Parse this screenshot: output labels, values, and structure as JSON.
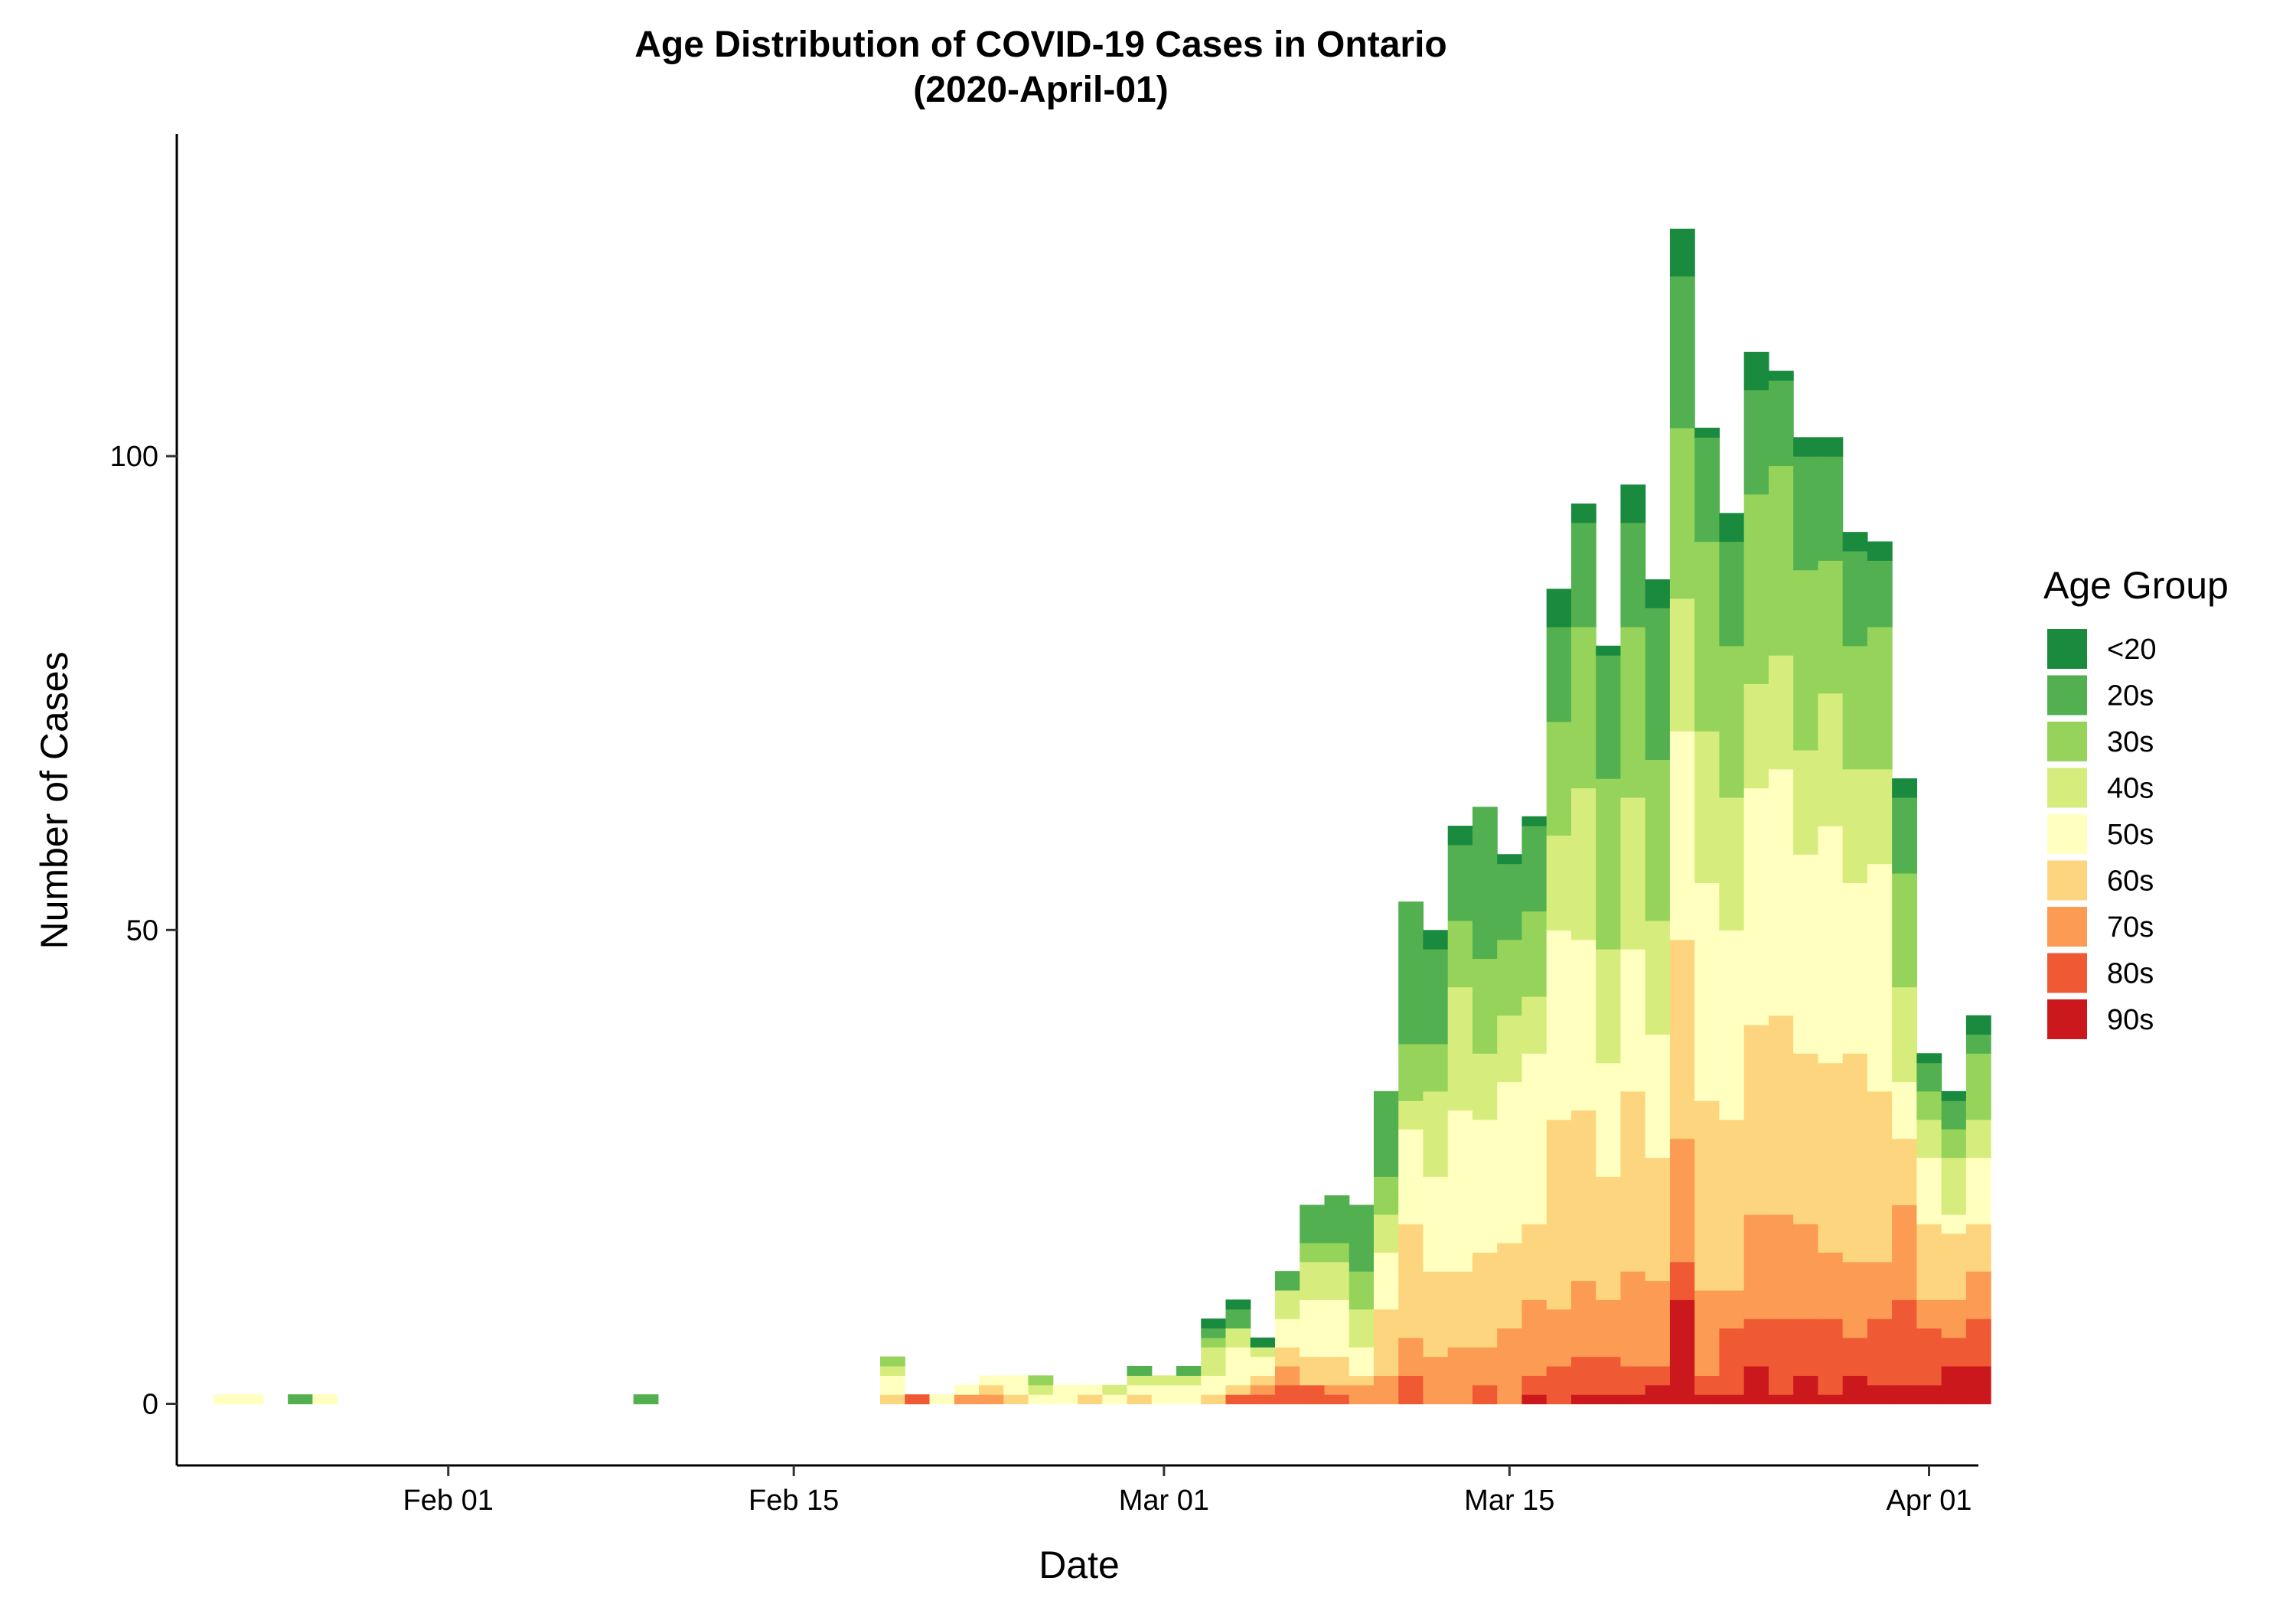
{
  "chart_data": {
    "type": "bar",
    "stacked": true,
    "title": "Age Distribution of COVID-19 Cases in Ontario",
    "subtitle": "(2020-April-01)",
    "xlabel": "Date",
    "ylabel": "Number of Cases",
    "x_start_date": "2020-01-23",
    "xlim": [
      "2020-01-21",
      "2020-04-03"
    ],
    "ylim": [
      -6.5,
      134
    ],
    "yticks": [
      0,
      50,
      100
    ],
    "xticks": [
      {
        "date": "2020-02-01",
        "label": "Feb 01"
      },
      {
        "date": "2020-02-15",
        "label": "Feb 15"
      },
      {
        "date": "2020-03-01",
        "label": "Mar 01"
      },
      {
        "date": "2020-03-15",
        "label": "Mar 15"
      },
      {
        "date": "2020-04-01",
        "label": "Apr 01"
      }
    ],
    "legend": {
      "title": "Age Group",
      "position": "right"
    },
    "series": [
      {
        "name": "90s",
        "color": "#cb181d",
        "values": [
          0,
          0,
          0,
          0,
          0,
          0,
          0,
          0,
          0,
          0,
          0,
          0,
          0,
          0,
          0,
          0,
          0,
          0,
          0,
          0,
          0,
          0,
          0,
          0,
          0,
          0,
          0,
          0,
          0,
          0,
          0,
          0,
          0,
          0,
          0,
          0,
          0,
          0,
          0,
          0,
          0,
          0,
          0,
          0,
          0,
          0,
          0,
          0,
          0,
          0,
          0,
          0,
          0,
          1,
          0,
          1,
          1,
          1,
          2,
          11,
          1,
          1,
          4,
          1,
          3,
          1,
          3,
          2,
          2,
          2,
          4,
          4
        ]
      },
      {
        "name": "80s",
        "color": "#ef5a35",
        "values": [
          0,
          0,
          0,
          0,
          0,
          0,
          0,
          0,
          0,
          0,
          0,
          0,
          0,
          0,
          0,
          0,
          0,
          0,
          0,
          0,
          0,
          0,
          0,
          0,
          0,
          0,
          0,
          0,
          1,
          0,
          0,
          0,
          0,
          0,
          0,
          0,
          0,
          0,
          0,
          0,
          0,
          1,
          1,
          2,
          2,
          1,
          0,
          0,
          3,
          0,
          0,
          2,
          0,
          2,
          4,
          4,
          4,
          3,
          2,
          4,
          2,
          7,
          5,
          8,
          6,
          8,
          4,
          7,
          9,
          6,
          3,
          5
        ]
      },
      {
        "name": "70s",
        "color": "#fc9b53",
        "values": [
          0,
          0,
          0,
          0,
          0,
          0,
          0,
          0,
          0,
          0,
          0,
          0,
          0,
          0,
          0,
          0,
          0,
          0,
          0,
          0,
          0,
          0,
          0,
          0,
          0,
          0,
          0,
          0,
          0,
          0,
          1,
          1,
          0,
          0,
          0,
          0,
          0,
          0,
          0,
          0,
          0,
          0,
          1,
          2,
          0,
          1,
          2,
          3,
          4,
          5,
          6,
          4,
          8,
          8,
          6,
          8,
          6,
          10,
          9,
          13,
          9,
          4,
          11,
          11,
          10,
          7,
          8,
          6,
          10,
          3,
          4,
          5
        ]
      },
      {
        "name": "60s",
        "color": "#fdd57f",
        "values": [
          0,
          0,
          0,
          0,
          0,
          0,
          0,
          0,
          0,
          0,
          0,
          0,
          0,
          0,
          0,
          0,
          0,
          0,
          0,
          0,
          0,
          0,
          0,
          0,
          0,
          0,
          0,
          1,
          0,
          0,
          0,
          1,
          1,
          0,
          0,
          1,
          0,
          1,
          0,
          0,
          1,
          1,
          1,
          2,
          3,
          3,
          1,
          7,
          12,
          9,
          8,
          10,
          9,
          8,
          20,
          18,
          13,
          19,
          13,
          21,
          20,
          18,
          20,
          21,
          18,
          20,
          22,
          18,
          7,
          8,
          7,
          5
        ]
      },
      {
        "name": "50s",
        "color": "#ffffc0",
        "values": [
          1,
          1,
          0,
          0,
          1,
          0,
          0,
          0,
          0,
          0,
          0,
          0,
          0,
          0,
          0,
          0,
          0,
          0,
          0,
          0,
          0,
          0,
          0,
          0,
          0,
          0,
          0,
          2,
          0,
          1,
          1,
          1,
          2,
          1,
          2,
          1,
          1,
          1,
          2,
          2,
          2,
          4,
          2,
          3,
          6,
          6,
          3,
          6,
          10,
          10,
          17,
          14,
          17,
          18,
          20,
          18,
          12,
          15,
          13,
          22,
          23,
          20,
          25,
          26,
          21,
          25,
          18,
          24,
          6,
          7,
          2,
          7
        ]
      },
      {
        "name": "40s",
        "color": "#d6ed7d",
        "values": [
          0,
          0,
          0,
          0,
          0,
          0,
          0,
          0,
          0,
          0,
          0,
          0,
          0,
          0,
          0,
          0,
          0,
          0,
          0,
          0,
          0,
          0,
          0,
          0,
          0,
          0,
          0,
          1,
          0,
          0,
          0,
          0,
          0,
          1,
          0,
          0,
          1,
          1,
          1,
          1,
          3,
          2,
          1,
          3,
          4,
          4,
          4,
          4,
          3,
          9,
          13,
          7,
          7,
          6,
          10,
          16,
          12,
          16,
          12,
          14,
          16,
          14,
          11,
          12,
          11,
          14,
          12,
          10,
          10,
          4,
          6,
          4
        ]
      },
      {
        "name": "30s",
        "color": "#96d35b",
        "values": [
          0,
          0,
          0,
          0,
          0,
          0,
          0,
          0,
          0,
          0,
          0,
          0,
          0,
          0,
          0,
          0,
          0,
          0,
          0,
          0,
          0,
          0,
          0,
          0,
          0,
          0,
          0,
          1,
          0,
          0,
          0,
          0,
          0,
          1,
          0,
          0,
          0,
          0,
          0,
          0,
          1,
          0,
          0,
          0,
          2,
          2,
          4,
          4,
          6,
          5,
          7,
          10,
          8,
          9,
          12,
          17,
          18,
          18,
          17,
          18,
          20,
          16,
          20,
          20,
          19,
          14,
          13,
          15,
          12,
          3,
          3,
          7
        ]
      },
      {
        "name": "20s",
        "color": "#53b050",
        "values": [
          0,
          0,
          0,
          1,
          0,
          0,
          0,
          0,
          0,
          0,
          0,
          0,
          0,
          0,
          0,
          0,
          0,
          1,
          0,
          0,
          0,
          0,
          0,
          0,
          0,
          0,
          0,
          0,
          0,
          0,
          0,
          0,
          0,
          0,
          0,
          0,
          0,
          1,
          0,
          1,
          1,
          2,
          0,
          2,
          4,
          5,
          7,
          9,
          15,
          10,
          8,
          16,
          8,
          9,
          10,
          11,
          13,
          11,
          16,
          16,
          11,
          11,
          11,
          9,
          12,
          11,
          10,
          7,
          8,
          3,
          3,
          2
        ]
      },
      {
        "name": "<20",
        "color": "#1a8a3e",
        "values": [
          0,
          0,
          0,
          0,
          0,
          0,
          0,
          0,
          0,
          0,
          0,
          0,
          0,
          0,
          0,
          0,
          0,
          0,
          0,
          0,
          0,
          0,
          0,
          0,
          0,
          0,
          0,
          0,
          0,
          0,
          0,
          0,
          0,
          0,
          0,
          0,
          0,
          0,
          0,
          0,
          1,
          1,
          1,
          0,
          0,
          0,
          0,
          0,
          0,
          2,
          2,
          0,
          1,
          1,
          4,
          2,
          1,
          4,
          3,
          5,
          1,
          3,
          4,
          1,
          2,
          2,
          2,
          2,
          2,
          1,
          1,
          2
        ]
      }
    ]
  }
}
